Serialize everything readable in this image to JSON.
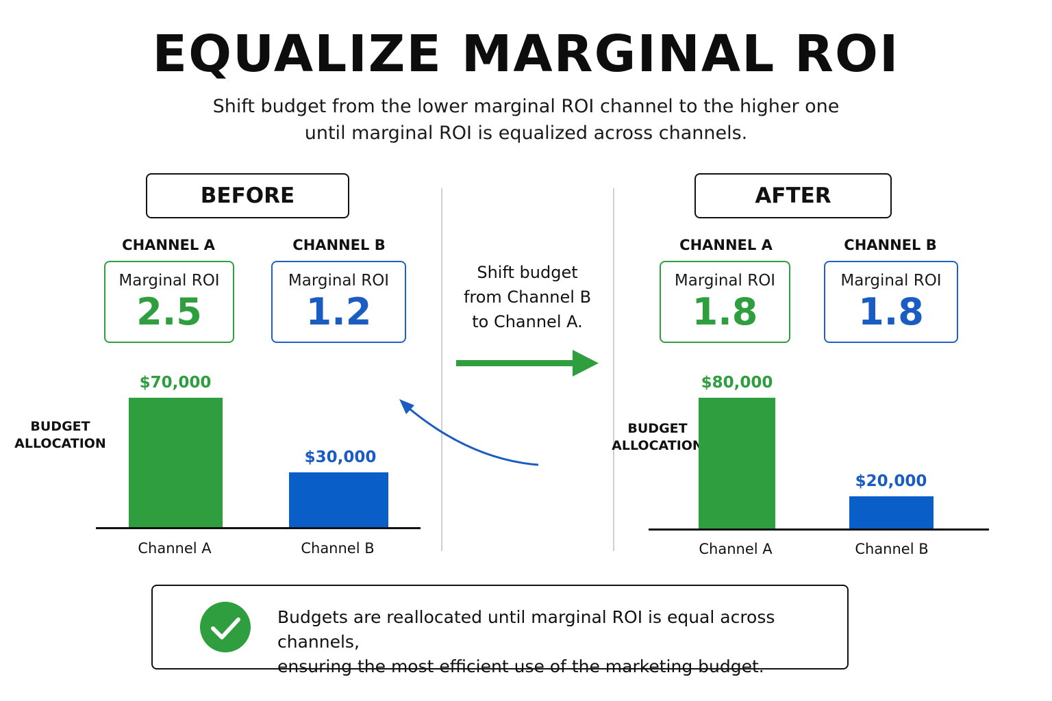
{
  "title": "EQUALIZE MARGINAL ROI",
  "subtitle": {
    "line1": "Shift budget from the lower marginal ROI channel to the higher one",
    "line2": "until marginal ROI is equalized across channels."
  },
  "colors": {
    "channel_a": "#2e9e3e",
    "channel_b": "#0a5ec7"
  },
  "before": {
    "label": "BEFORE",
    "axis_label": [
      "BUDGET",
      "ALLOCATION"
    ],
    "channels": [
      {
        "header": "CHANNEL A",
        "roi_label": "Marginal ROI",
        "roi_value": "2.5",
        "budget_label": "$70,000",
        "budget": 70000,
        "category": "Channel A"
      },
      {
        "header": "CHANNEL B",
        "roi_label": "Marginal ROI",
        "roi_value": "1.2",
        "budget_label": "$30,000",
        "budget": 30000,
        "category": "Channel B"
      }
    ]
  },
  "transition": {
    "lines": [
      "Shift budget",
      "from Channel B",
      "to Channel A."
    ],
    "arrow_icon": "arrow-right-icon",
    "curve_icon": "curved-arrow-icon"
  },
  "after": {
    "label": "AFTER",
    "axis_label": [
      "BUDGET",
      "ALLOCATION"
    ],
    "channels": [
      {
        "header": "CHANNEL A",
        "roi_label": "Marginal ROI",
        "roi_value": "1.8",
        "budget_label": "$80,000",
        "budget": 80000,
        "category": "Channel A"
      },
      {
        "header": "CHANNEL B",
        "roi_label": "Marginal ROI",
        "roi_value": "1.8",
        "budget_label": "$20,000",
        "budget": 20000,
        "category": "Channel B"
      }
    ]
  },
  "note": {
    "icon": "check-circle-icon",
    "line1": "Budgets are reallocated until marginal ROI is equal across channels,",
    "line2": "ensuring the most efficient use of the marketing budget."
  }
}
